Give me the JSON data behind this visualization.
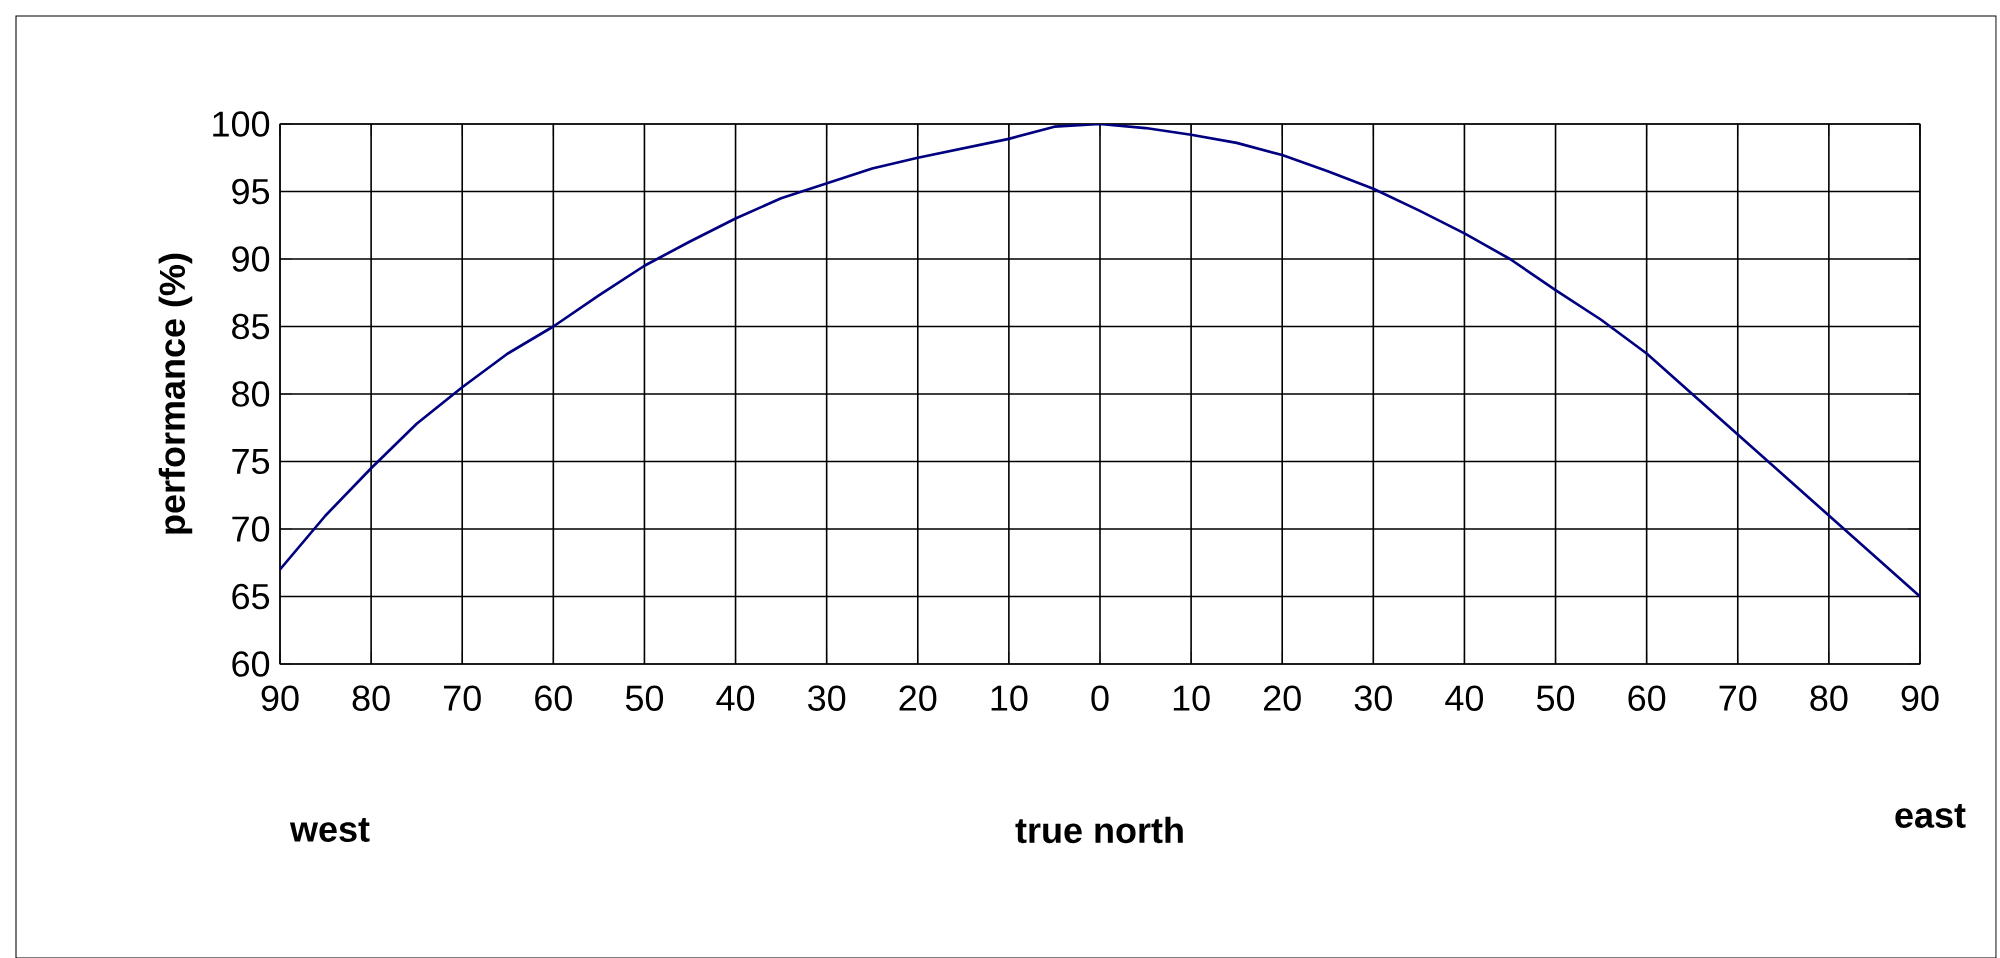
{
  "chart_data": {
    "type": "line",
    "ylabel": "performance (%)",
    "annotations": [
      "west",
      "true north",
      "east"
    ],
    "x": [
      -90,
      -85,
      -80,
      -75,
      -70,
      -65,
      -60,
      -55,
      -50,
      -45,
      -40,
      -35,
      -30,
      -25,
      -20,
      -15,
      -10,
      -5,
      0,
      5,
      10,
      15,
      20,
      25,
      30,
      35,
      40,
      45,
      50,
      55,
      60,
      65,
      70,
      75,
      80,
      85,
      90
    ],
    "series": [
      {
        "color": "#000080",
        "values": [
          67,
          71,
          74.5,
          77.8,
          80.5,
          83,
          85,
          87.3,
          89.5,
          91.3,
          93,
          94.5,
          95.6,
          96.7,
          97.5,
          98.2,
          98.9,
          99.8,
          100,
          99.7,
          99.2,
          98.6,
          97.7,
          96.5,
          95.2,
          93.6,
          91.9,
          90,
          87.7,
          85.5,
          83,
          80,
          77,
          74,
          71,
          68,
          65
        ]
      }
    ],
    "xlim": [
      -90,
      90
    ],
    "xticks": [
      {
        "value": -90,
        "label": "90"
      },
      {
        "value": -80,
        "label": "80"
      },
      {
        "value": -70,
        "label": "70"
      },
      {
        "value": -60,
        "label": "60"
      },
      {
        "value": -50,
        "label": "50"
      },
      {
        "value": -40,
        "label": "40"
      },
      {
        "value": -30,
        "label": "30"
      },
      {
        "value": -20,
        "label": "20"
      },
      {
        "value": -10,
        "label": "10"
      },
      0,
      10,
      20,
      30,
      40,
      50,
      60,
      70,
      80,
      90
    ],
    "ylim": [
      60,
      100
    ],
    "yticks": [
      60,
      65,
      70,
      75,
      80,
      85,
      90,
      95,
      100
    ],
    "grid": true,
    "marker": "none",
    "line_style": "solid"
  }
}
